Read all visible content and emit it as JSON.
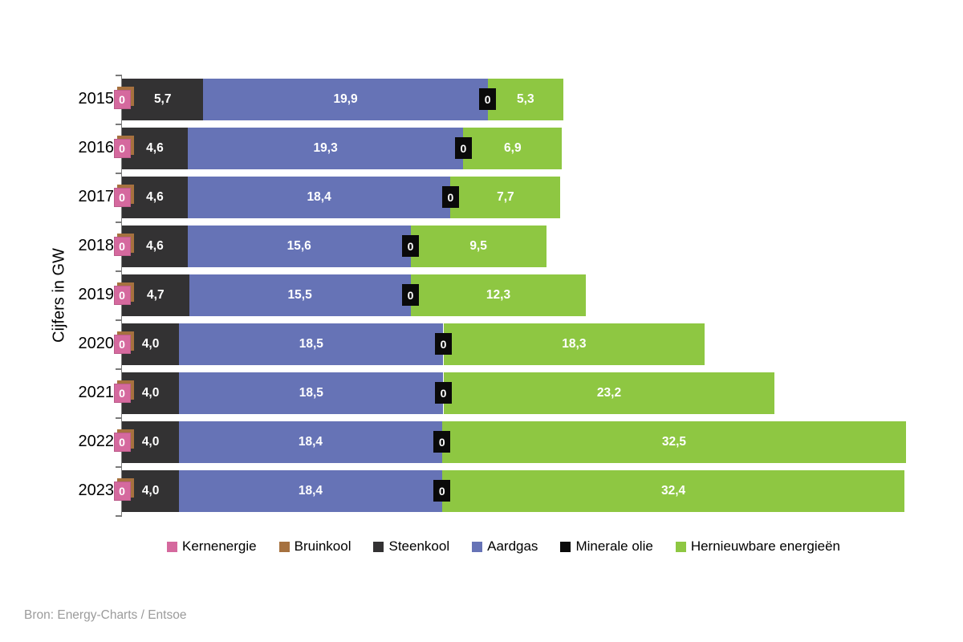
{
  "chart_data": {
    "type": "bar",
    "orientation": "horizontal",
    "stacked": true,
    "unit": "GW",
    "ylabel": "Cijfers in GW",
    "xlim": [
      0,
      55
    ],
    "grid": false,
    "legend_position": "bottom",
    "source": "Bron: Energy-Charts / Entsoe",
    "categories": [
      "2015",
      "2016",
      "2017",
      "2018",
      "2019",
      "2020",
      "2021",
      "2022",
      "2023"
    ],
    "series": [
      {
        "name": "Kernenergie",
        "color": "#d5699e",
        "values": [
          0,
          0,
          0,
          0,
          0,
          0,
          0,
          0,
          0
        ],
        "labels": [
          "0",
          "0",
          "0",
          "0",
          "0",
          "0",
          "0",
          "0",
          "0"
        ]
      },
      {
        "name": "Bruinkool",
        "color": "#a6713f",
        "values": [
          0,
          0,
          0,
          0,
          0,
          0,
          0,
          0,
          0
        ],
        "labels": [
          "0",
          "0",
          "0",
          "0",
          "0",
          "0",
          "0",
          "0",
          "0"
        ]
      },
      {
        "name": "Steenkool",
        "color": "#333233",
        "values": [
          5.7,
          4.6,
          4.6,
          4.6,
          4.7,
          4.0,
          4.0,
          4.0,
          4.0
        ],
        "labels": [
          "5,7",
          "4,6",
          "4,6",
          "4,6",
          "4,7",
          "4,0",
          "4,0",
          "4,0",
          "4,0"
        ]
      },
      {
        "name": "Aardgas",
        "color": "#6673b6",
        "values": [
          19.9,
          19.3,
          18.4,
          15.6,
          15.5,
          18.5,
          18.5,
          18.4,
          18.4
        ],
        "labels": [
          "19,9",
          "19,3",
          "18,4",
          "15,6",
          "15,5",
          "18,5",
          "18,5",
          "18,4",
          "18,4"
        ]
      },
      {
        "name": "Minerale olie",
        "color": "#0a0a0a",
        "values": [
          0,
          0,
          0,
          0,
          0,
          0,
          0,
          0,
          0
        ],
        "labels": [
          "0",
          "0",
          "0",
          "0",
          "0",
          "0",
          "0",
          "0",
          "0"
        ]
      },
      {
        "name": "Hernieuwbare energieën",
        "color": "#8ec742",
        "values": [
          5.3,
          6.9,
          7.7,
          9.5,
          12.3,
          18.3,
          23.2,
          32.5,
          32.4
        ],
        "labels": [
          "5,3",
          "6,9",
          "7,7",
          "9,5",
          "12,3",
          "18,3",
          "23,2",
          "32,5",
          "32,4"
        ]
      }
    ]
  }
}
